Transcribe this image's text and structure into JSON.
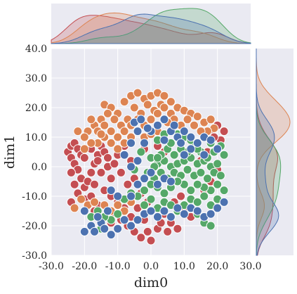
{
  "chart_data": {
    "type": "scatter",
    "title": "",
    "xlabel": "dim0",
    "ylabel": "dim1",
    "xlim": [
      -30,
      30
    ],
    "ylim": [
      -30,
      40
    ],
    "xticks": [
      "-30.0",
      "-20.0",
      "-10.0",
      "0.0",
      "10.0",
      "20.0",
      "30.0"
    ],
    "yticks": [
      "-30.0",
      "-20.0",
      "-10.0",
      "0.0",
      "10.0",
      "20.0",
      "30.0",
      "40.0"
    ],
    "grid": true,
    "legend": "none",
    "marginals": "kde",
    "colors": {
      "background": "#eaeaf2",
      "grid": "#ffffff",
      "red": "#c44e52",
      "orange": "#dd8452",
      "green": "#55a868",
      "blue": "#4c72b0"
    },
    "series": [
      {
        "color": "red",
        "points": [
          [
            -25,
            5
          ],
          [
            -24,
            7
          ],
          [
            -23,
            8
          ],
          [
            -22,
            6
          ],
          [
            -24,
            3
          ],
          [
            -21,
            4
          ],
          [
            -23,
            1
          ],
          [
            -20,
            3
          ],
          [
            -22,
            -1
          ],
          [
            -24,
            -2
          ],
          [
            -21,
            -4
          ],
          [
            -23,
            -6
          ],
          [
            -20,
            -7
          ],
          [
            -22,
            -9
          ],
          [
            -19,
            -5
          ],
          [
            -18,
            -2
          ],
          [
            -17,
            1
          ],
          [
            -16,
            4
          ],
          [
            -18,
            6
          ],
          [
            -15,
            7
          ],
          [
            -14,
            5
          ],
          [
            -16,
            2
          ],
          [
            -13,
            0
          ],
          [
            -15,
            -2
          ],
          [
            -17,
            -6
          ],
          [
            -14,
            -8
          ],
          [
            -12,
            -4
          ],
          [
            -12,
            -10
          ],
          [
            -10,
            -12
          ],
          [
            -8,
            -14
          ],
          [
            -13,
            3
          ],
          [
            -11,
            1
          ],
          [
            -9,
            -2
          ],
          [
            -10,
            4
          ],
          [
            -8,
            7
          ],
          [
            -6,
            2
          ],
          [
            -7,
            -6
          ],
          [
            -5,
            -4
          ],
          [
            -11,
            -16
          ],
          [
            -9,
            -18
          ],
          [
            -7,
            -20
          ],
          [
            -5,
            -22
          ],
          [
            -3,
            -24
          ],
          [
            -6,
            -17
          ],
          [
            -4,
            -14
          ],
          [
            -2,
            -18
          ],
          [
            -1,
            -22
          ],
          [
            0,
            -25
          ],
          [
            2,
            -21
          ],
          [
            3,
            -19
          ],
          [
            4,
            -16
          ],
          [
            5,
            -22
          ],
          [
            6,
            -19
          ],
          [
            8,
            -21
          ],
          [
            -3,
            -9
          ],
          [
            -1,
            -12
          ],
          [
            -20,
            -11
          ],
          [
            -18,
            -10
          ],
          [
            -24,
            -12
          ],
          [
            -16,
            -13
          ],
          [
            -2,
            6
          ],
          [
            0,
            3
          ],
          [
            2,
            7
          ],
          [
            4,
            5
          ],
          [
            10,
            -14
          ],
          [
            12,
            -17
          ],
          [
            7,
            -12
          ],
          [
            9,
            -10
          ],
          [
            16,
            -8
          ],
          [
            18,
            -5
          ],
          [
            20,
            -1
          ],
          [
            15,
            2
          ],
          [
            17,
            5
          ],
          [
            18,
            12
          ],
          [
            20,
            14
          ],
          [
            22,
            12
          ],
          [
            21,
            9
          ],
          [
            19,
            10
          ],
          [
            -12,
            -19
          ],
          [
            -17,
            -15
          ]
        ]
      },
      {
        "color": "orange",
        "points": [
          [
            -14,
            21
          ],
          [
            -12,
            20
          ],
          [
            -10,
            18
          ],
          [
            -8,
            22
          ],
          [
            -6,
            24
          ],
          [
            -4,
            25
          ],
          [
            -2,
            23
          ],
          [
            0,
            24
          ],
          [
            2,
            25
          ],
          [
            4,
            24
          ],
          [
            3,
            21
          ],
          [
            1,
            19
          ],
          [
            -1,
            21
          ],
          [
            -3,
            18
          ],
          [
            -5,
            20
          ],
          [
            -7,
            16
          ],
          [
            -9,
            14
          ],
          [
            -11,
            16
          ],
          [
            -13,
            18
          ],
          [
            -15,
            16
          ],
          [
            -17,
            14
          ],
          [
            -19,
            12
          ],
          [
            -18,
            16
          ],
          [
            -20,
            10
          ],
          [
            -16,
            12
          ],
          [
            -14,
            14
          ],
          [
            -12,
            12
          ],
          [
            -10,
            10
          ],
          [
            -8,
            12
          ],
          [
            -6,
            14
          ],
          [
            -4,
            16
          ],
          [
            -2,
            14
          ],
          [
            0,
            16
          ],
          [
            2,
            18
          ],
          [
            4,
            20
          ],
          [
            6,
            22
          ],
          [
            6,
            18
          ],
          [
            8,
            20
          ],
          [
            10,
            19
          ],
          [
            12,
            18
          ],
          [
            14,
            17
          ],
          [
            16,
            15
          ],
          [
            18,
            16
          ],
          [
            19,
            13
          ],
          [
            17,
            12
          ],
          [
            15,
            12
          ],
          [
            13,
            14
          ],
          [
            11,
            16
          ],
          [
            9,
            14
          ],
          [
            7,
            16
          ],
          [
            5,
            15
          ],
          [
            -12,
            8
          ],
          [
            -10,
            6
          ],
          [
            -8,
            8
          ],
          [
            -14,
            10
          ],
          [
            -16,
            8
          ],
          [
            -18,
            8
          ],
          [
            -15,
            11
          ],
          [
            -21,
            -11
          ],
          [
            -23,
            -14
          ],
          [
            -20,
            -15
          ],
          [
            -19,
            -13
          ],
          [
            -17,
            -12
          ],
          [
            -14,
            -13
          ],
          [
            -12,
            -15
          ],
          [
            -8,
            -15
          ],
          [
            -6,
            -12
          ],
          [
            -10,
            -13
          ],
          [
            -22,
            12
          ],
          [
            -20,
            6
          ],
          [
            -6,
            10
          ],
          [
            -2,
            10
          ],
          [
            0,
            11
          ],
          [
            2,
            12
          ]
        ]
      },
      {
        "color": "green",
        "points": [
          [
            0,
            3
          ],
          [
            2,
            1
          ],
          [
            4,
            2
          ],
          [
            6,
            0
          ],
          [
            8,
            1
          ],
          [
            10,
            2
          ],
          [
            12,
            3
          ],
          [
            14,
            1
          ],
          [
            16,
            2
          ],
          [
            18,
            0
          ],
          [
            20,
            1
          ],
          [
            22,
            4
          ],
          [
            21,
            7
          ],
          [
            19,
            5
          ],
          [
            17,
            3
          ],
          [
            15,
            5
          ],
          [
            13,
            7
          ],
          [
            11,
            5
          ],
          [
            9,
            6
          ],
          [
            7,
            4
          ],
          [
            5,
            6
          ],
          [
            3,
            4
          ],
          [
            1,
            0
          ],
          [
            -1,
            -2
          ],
          [
            1,
            -4
          ],
          [
            3,
            -2
          ],
          [
            5,
            -4
          ],
          [
            7,
            -2
          ],
          [
            9,
            -3
          ],
          [
            11,
            -1
          ],
          [
            13,
            -3
          ],
          [
            15,
            -2
          ],
          [
            17,
            -4
          ],
          [
            19,
            -2
          ],
          [
            21,
            -3
          ],
          [
            22,
            -8
          ],
          [
            20,
            -6
          ],
          [
            18,
            -8
          ],
          [
            16,
            -7
          ],
          [
            14,
            -6
          ],
          [
            12,
            -8
          ],
          [
            10,
            -6
          ],
          [
            8,
            -5
          ],
          [
            6,
            -7
          ],
          [
            4,
            -9
          ],
          [
            2,
            -7
          ],
          [
            0,
            -6
          ],
          [
            -2,
            -8
          ],
          [
            -4,
            -10
          ],
          [
            -6,
            -9
          ],
          [
            -8,
            -11
          ],
          [
            -2,
            -13
          ],
          [
            0,
            -11
          ],
          [
            2,
            -14
          ],
          [
            4,
            -12
          ],
          [
            6,
            -13
          ],
          [
            8,
            -15
          ],
          [
            10,
            -13
          ],
          [
            12,
            -11
          ],
          [
            14,
            -12
          ],
          [
            16,
            -10
          ],
          [
            18,
            -13
          ],
          [
            20,
            -11
          ],
          [
            14,
            -16
          ],
          [
            16,
            -19
          ],
          [
            18,
            -20
          ],
          [
            -10,
            -16
          ],
          [
            -12,
            -18
          ],
          [
            -15,
            -21
          ],
          [
            -14,
            -17
          ],
          [
            -18,
            -17
          ],
          [
            -16,
            -15
          ],
          [
            2,
            9
          ],
          [
            4,
            11
          ],
          [
            6,
            8
          ],
          [
            10,
            10
          ],
          [
            8,
            11
          ],
          [
            12,
            9
          ],
          [
            14,
            6
          ],
          [
            18,
            8
          ],
          [
            -3,
            5
          ],
          [
            -5,
            -1
          ],
          [
            2,
            3
          ]
        ]
      },
      {
        "color": "blue",
        "points": [
          [
            -20,
            -22
          ],
          [
            -18,
            -20
          ],
          [
            -17,
            -22
          ],
          [
            -15,
            -19
          ],
          [
            -14,
            -21
          ],
          [
            -12,
            -23
          ],
          [
            -10,
            -21
          ],
          [
            -16,
            -17
          ],
          [
            -20,
            -15
          ],
          [
            -13,
            -15
          ],
          [
            -8,
            -18
          ],
          [
            -6,
            -20
          ],
          [
            -4,
            -18
          ],
          [
            -2,
            -16
          ],
          [
            0,
            -15
          ],
          [
            2,
            -17
          ],
          [
            4,
            -15
          ],
          [
            6,
            -17
          ],
          [
            8,
            -14
          ],
          [
            10,
            -16
          ],
          [
            12,
            -14
          ],
          [
            14,
            -15
          ],
          [
            16,
            -17
          ],
          [
            18,
            -16
          ],
          [
            20,
            -14
          ],
          [
            22,
            -12
          ],
          [
            -12,
            -8
          ],
          [
            -10,
            -10
          ],
          [
            -6,
            -10
          ],
          [
            -4,
            -6
          ],
          [
            -2,
            -4
          ],
          [
            0,
            -2
          ],
          [
            2,
            -6
          ],
          [
            4,
            -4
          ],
          [
            6,
            -5
          ],
          [
            -6,
            0
          ],
          [
            -4,
            2
          ],
          [
            -8,
            4
          ],
          [
            -2,
            8
          ],
          [
            0,
            12
          ],
          [
            2,
            14
          ],
          [
            4,
            9
          ],
          [
            6,
            12
          ],
          [
            8,
            10
          ],
          [
            10,
            12
          ],
          [
            12,
            10
          ],
          [
            14,
            8
          ],
          [
            16,
            10
          ],
          [
            18,
            9
          ],
          [
            12,
            6
          ],
          [
            10,
            4
          ],
          [
            16,
            4
          ],
          [
            20,
            6
          ],
          [
            -4,
            12
          ],
          [
            -6,
            8
          ],
          [
            -5,
            15
          ],
          [
            -3,
            16
          ],
          [
            -1,
            13
          ],
          [
            4,
            16
          ],
          [
            7,
            14
          ],
          [
            9,
            8
          ]
        ]
      }
    ]
  }
}
